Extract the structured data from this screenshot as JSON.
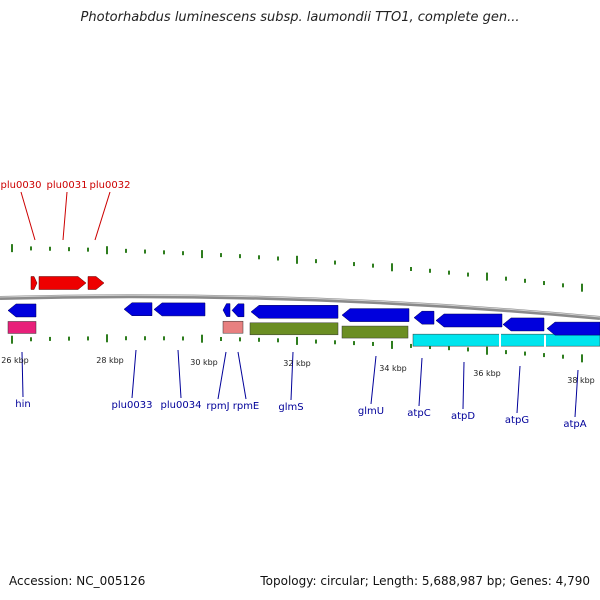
{
  "title": "Photorhabdus luminescens subsp. laumondii TTO1, complete gen...",
  "accession": "Accession: NC_005126",
  "stats": "Topology: circular; Length: 5,688,987 bp; Genes: 4,790",
  "colors": {
    "backbone": "#808080",
    "tick": "#2e7d1e",
    "forward_gene": "#ee0000",
    "reverse_gene": "#0000dd",
    "forward_label": "#cc0000",
    "reverse_label": "#000099",
    "feature_pink": "#e8207a",
    "feature_salmon": "#e88080",
    "feature_olive": "#6b8e23",
    "feature_cyan": "#00e5ee"
  },
  "scale_labels": [
    "26 kbp",
    "28 kbp",
    "30 kbp",
    "32 kbp",
    "34 kbp",
    "36 kbp",
    "38 kbp"
  ],
  "forward_genes": [
    "plu0030",
    "plu0031",
    "plu0032"
  ],
  "reverse_genes": [
    "hin",
    "plu0033",
    "plu0034",
    "rpmJ",
    "rpmE",
    "glmS",
    "glmU",
    "atpC",
    "atpD",
    "atpG",
    "atpA"
  ]
}
